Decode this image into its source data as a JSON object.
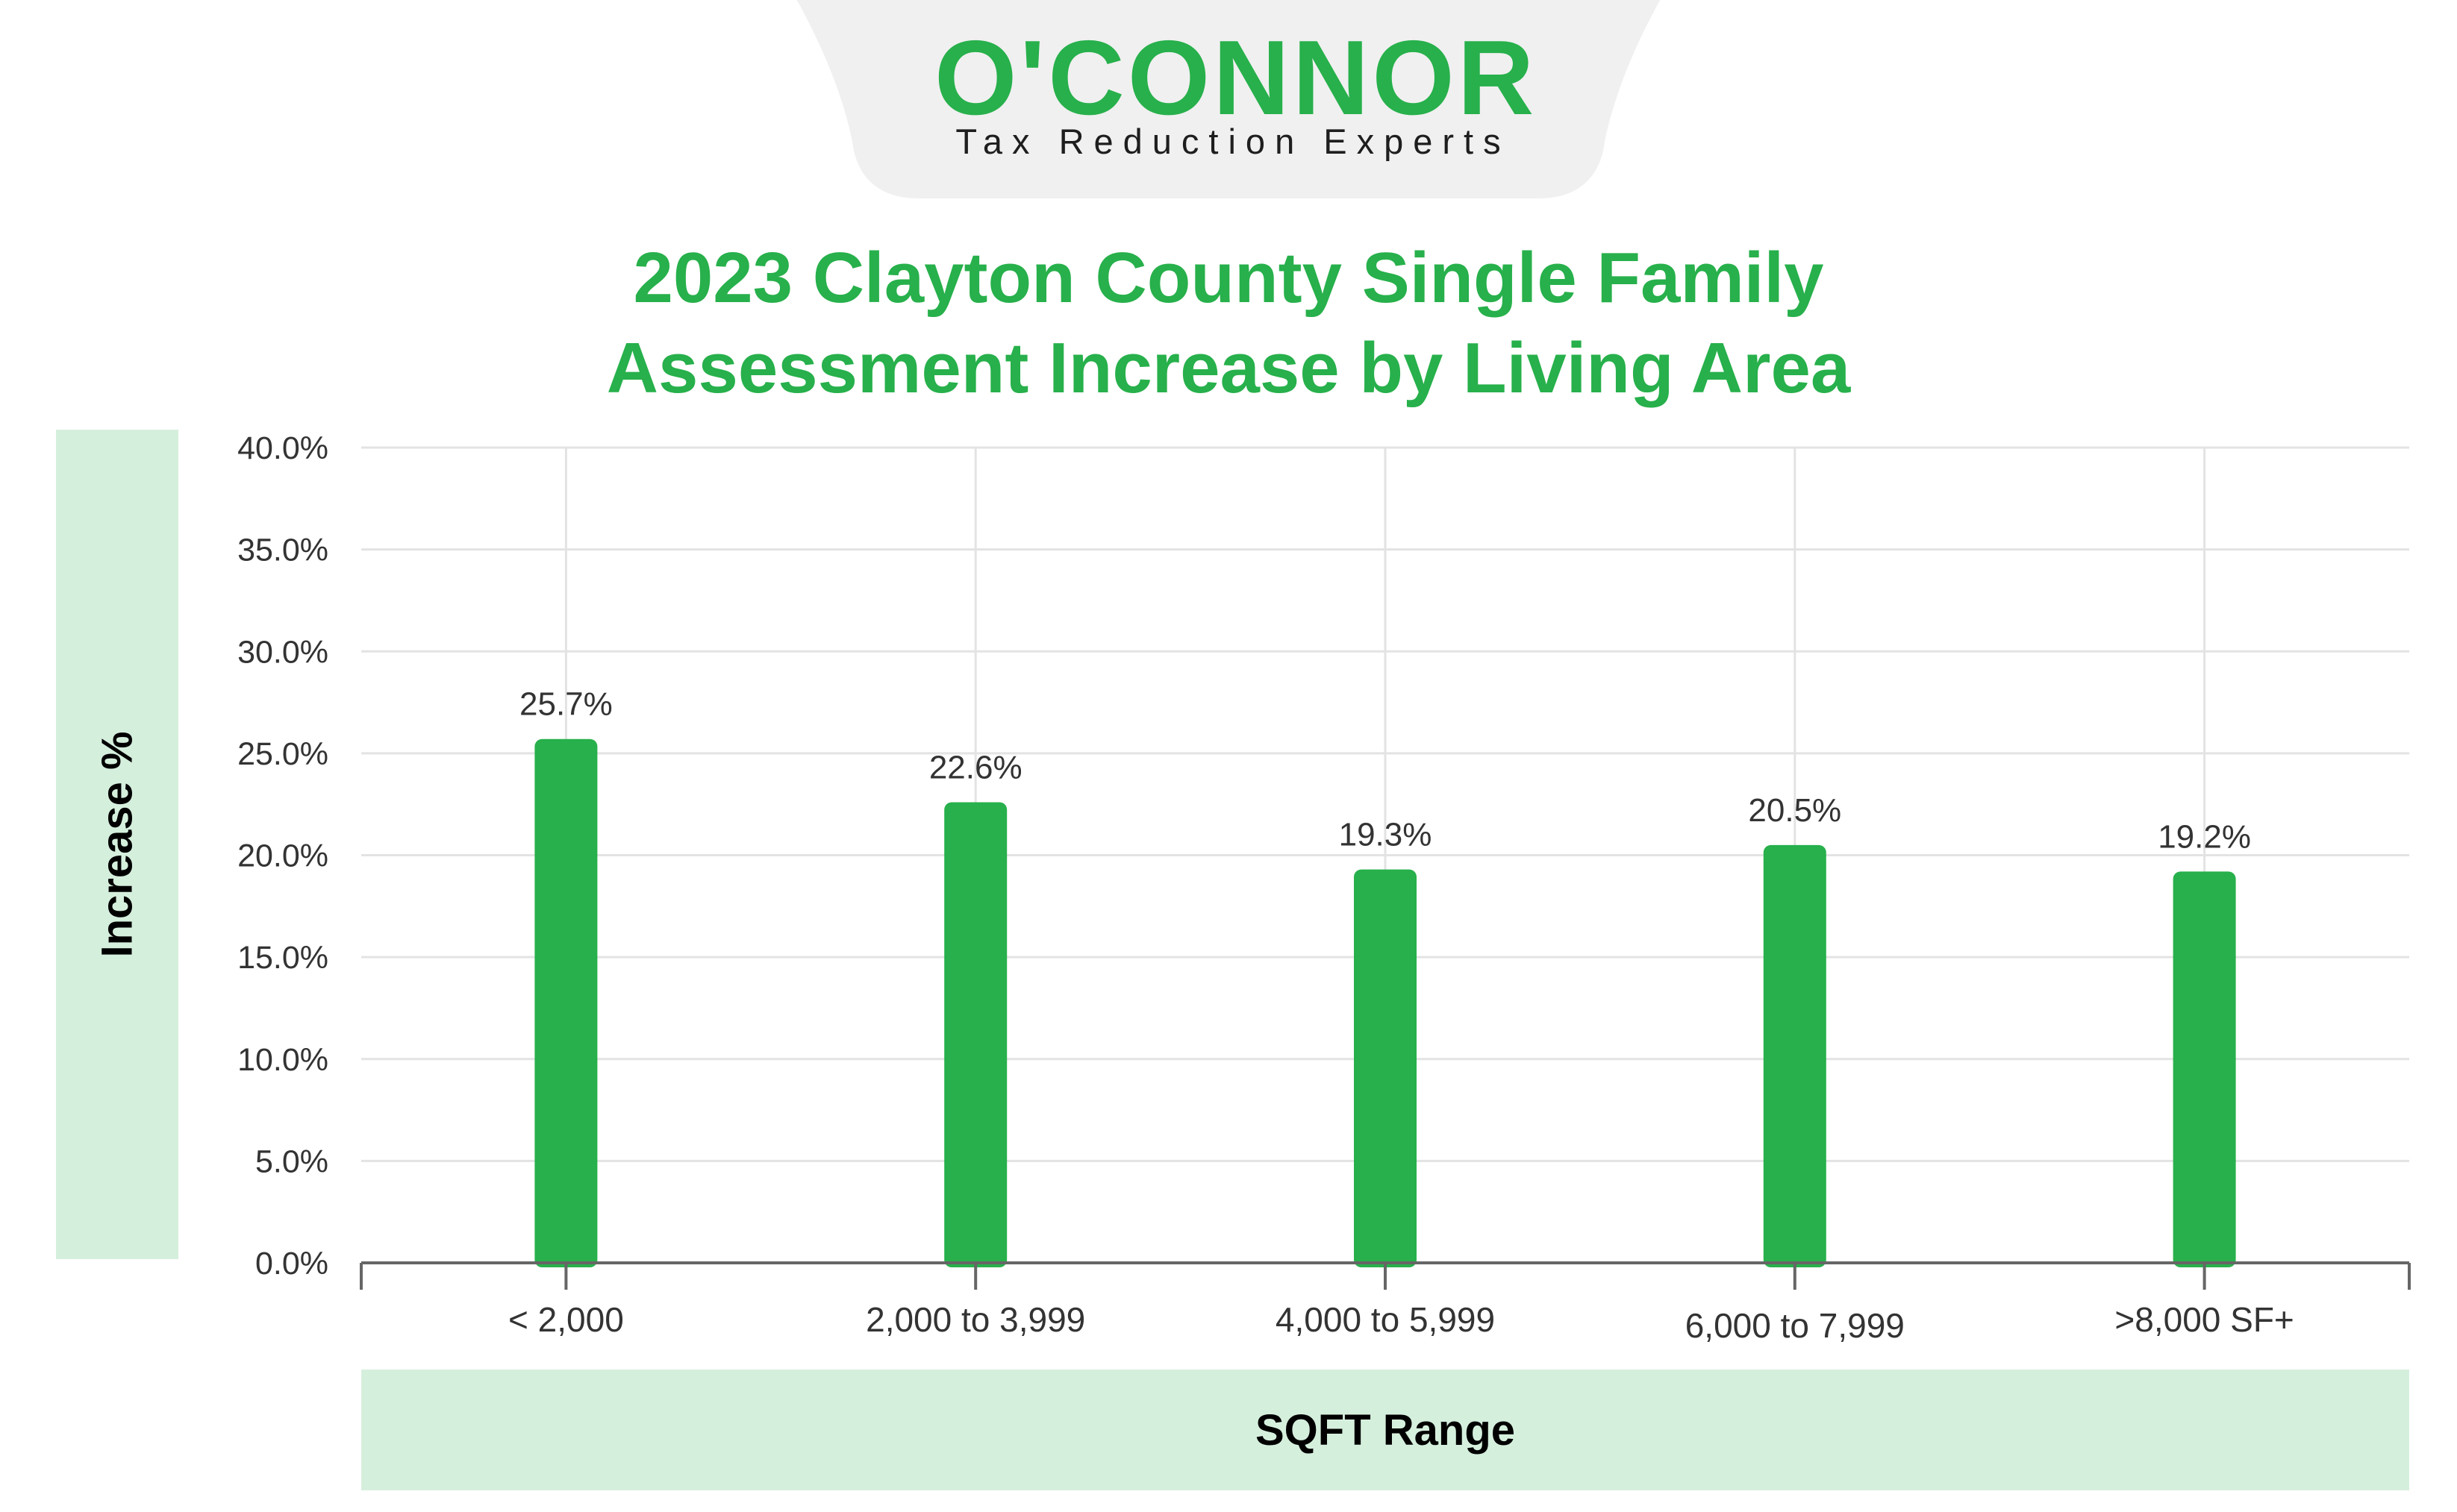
{
  "logo": {
    "wordmark": "O'CONNOR",
    "tagline": "Tax Reduction Experts",
    "brand_color": "#27b04b",
    "tab_color": "#f0f0f0"
  },
  "colors": {
    "bar": "#27b04b",
    "title": "#27b04b",
    "label_box": "#d5efdd",
    "grid": "#e3e3e3",
    "axis": "#666666"
  },
  "chart_data": {
    "type": "bar",
    "title_lines": [
      "2023 Clayton County Single Family",
      "Assessment Increase by Living Area"
    ],
    "xlabel": "SQFT Range",
    "ylabel": "Increase %",
    "categories": [
      "< 2,000",
      "2,000 to 3,999",
      "4,000 to 5,999",
      "6,000 to 7,999",
      ">8,000 SF+"
    ],
    "values": [
      25.7,
      22.6,
      19.3,
      20.5,
      19.2
    ],
    "value_labels": [
      "25.7%",
      "22.6%",
      "19.3%",
      "20.5%",
      "19.2%"
    ],
    "ylim": [
      0,
      40
    ],
    "yticks": [
      0,
      5,
      10,
      15,
      20,
      25,
      30,
      35,
      40
    ],
    "ytick_labels": [
      "0.0%",
      "5.0%",
      "10.0%",
      "15.0%",
      "20.0%",
      "25.0%",
      "30.0%",
      "35.0%",
      "40.0%"
    ],
    "grid": true,
    "legend": "none"
  }
}
